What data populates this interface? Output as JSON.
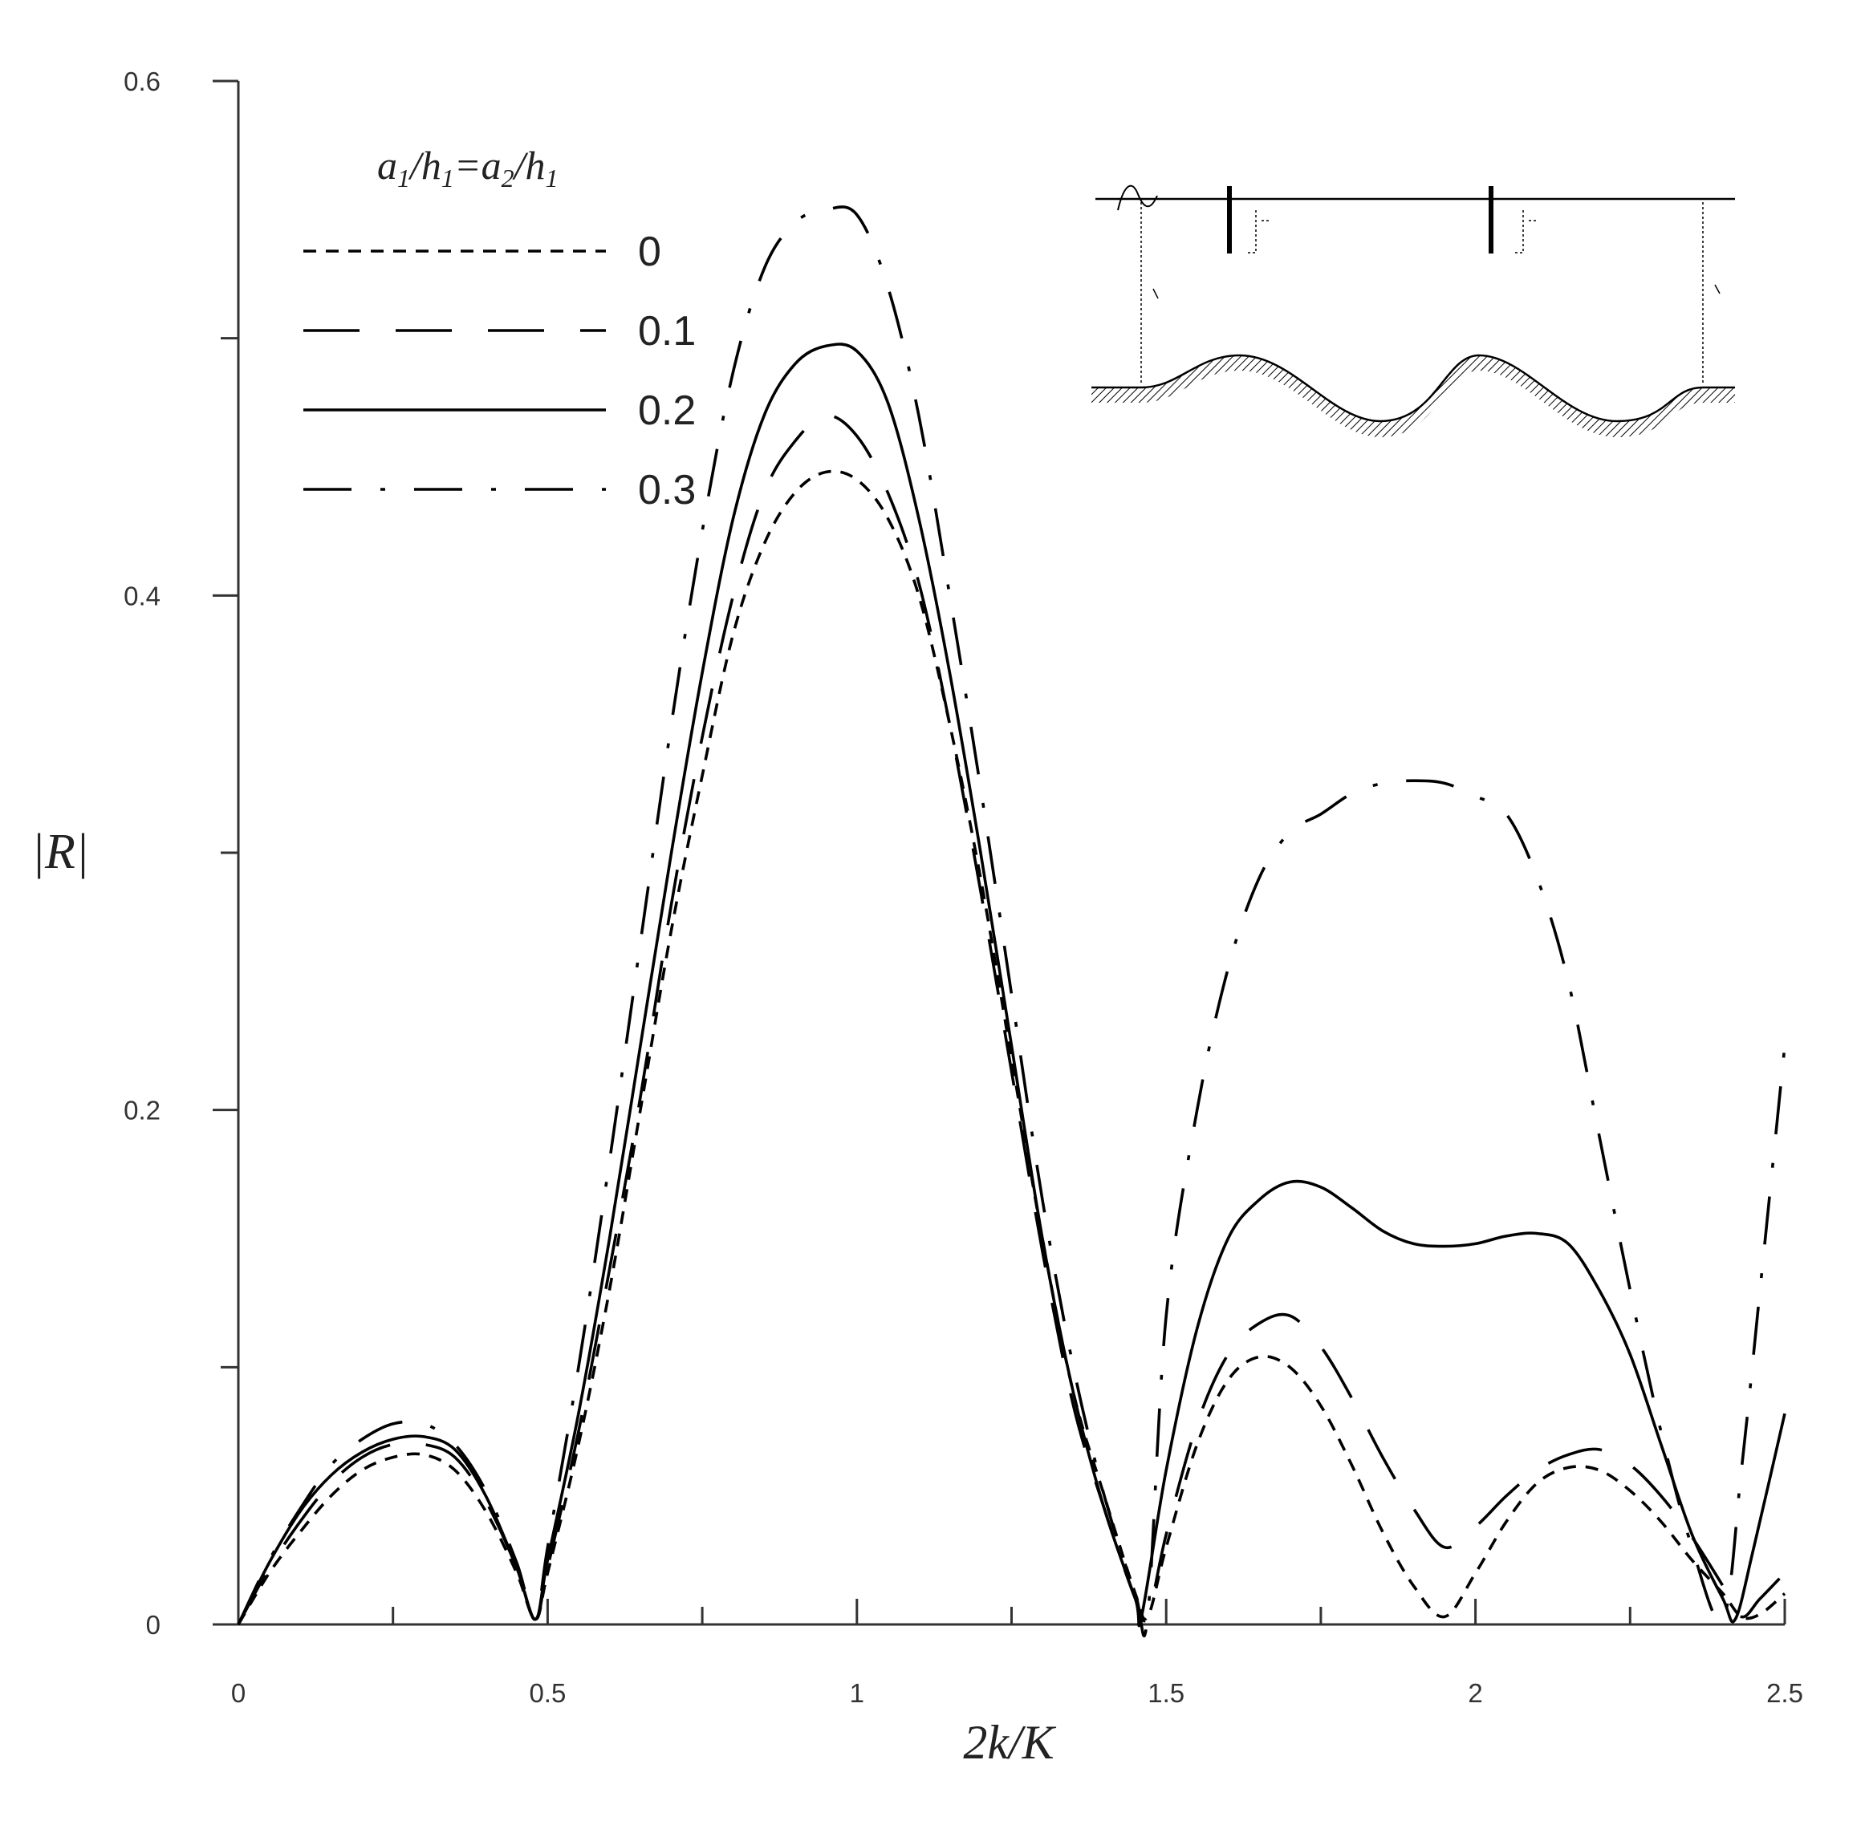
{
  "chart_data": {
    "type": "line",
    "xlabel": "2k/K",
    "ylabel": "|R|",
    "xlim": [
      0,
      2.5
    ],
    "ylim": [
      0,
      0.6
    ],
    "x_ticks": [
      "0",
      "0.5",
      "1",
      "1.5",
      "2",
      "2.5"
    ],
    "y_ticks": [
      "0",
      "0.2",
      "0.4",
      "0.6"
    ],
    "x_tick_values": [
      0,
      0.5,
      1,
      1.5,
      2,
      2.5
    ],
    "y_tick_values": [
      0,
      0.2,
      0.4,
      0.6
    ],
    "legend_title": {
      "a": "a",
      "s1": "1",
      "h": "/h",
      "s2": "1",
      "eq": "=a",
      "s3": "2",
      "h2": "/h",
      "s4": "1"
    },
    "legend_position": "top-left",
    "grid": false,
    "series": [
      {
        "name": "0",
        "style": "short-dash",
        "x": [
          0,
          0.05,
          0.1,
          0.15,
          0.2,
          0.25,
          0.3,
          0.35,
          0.4,
          0.45,
          0.48,
          0.5,
          0.55,
          0.6,
          0.65,
          0.7,
          0.75,
          0.8,
          0.85,
          0.9,
          0.95,
          1.0,
          1.05,
          1.1,
          1.15,
          1.2,
          1.25,
          1.3,
          1.35,
          1.4,
          1.45,
          1.47,
          1.5,
          1.55,
          1.6,
          1.65,
          1.7,
          1.75,
          1.8,
          1.85,
          1.9,
          1.95,
          2.0,
          2.05,
          2.1,
          2.15,
          2.2,
          2.25,
          2.3,
          2.35,
          2.4,
          2.43,
          2.46,
          2.5
        ],
        "y": [
          0,
          0.02,
          0.036,
          0.05,
          0.06,
          0.065,
          0.066,
          0.06,
          0.044,
          0.02,
          0.002,
          0.02,
          0.07,
          0.13,
          0.2,
          0.27,
          0.33,
          0.385,
          0.42,
          0.44,
          0.448,
          0.445,
          0.43,
          0.4,
          0.35,
          0.29,
          0.22,
          0.15,
          0.09,
          0.05,
          0.012,
          0.003,
          0.03,
          0.07,
          0.095,
          0.104,
          0.1,
          0.085,
          0.062,
          0.036,
          0.015,
          0.003,
          0.02,
          0.04,
          0.055,
          0.061,
          0.06,
          0.052,
          0.04,
          0.025,
          0.012,
          0.003,
          0.004,
          0.012
        ]
      },
      {
        "name": "0.1",
        "style": "long-dash",
        "x": [
          0,
          0.05,
          0.1,
          0.15,
          0.2,
          0.25,
          0.3,
          0.35,
          0.4,
          0.45,
          0.48,
          0.5,
          0.55,
          0.6,
          0.65,
          0.7,
          0.75,
          0.8,
          0.85,
          0.9,
          0.95,
          1.0,
          1.05,
          1.1,
          1.15,
          1.2,
          1.25,
          1.3,
          1.35,
          1.4,
          1.45,
          1.47,
          1.5,
          1.55,
          1.6,
          1.65,
          1.7,
          1.75,
          1.8,
          1.85,
          1.9,
          1.95,
          2.0,
          2.05,
          2.1,
          2.15,
          2.2,
          2.25,
          2.3,
          2.35,
          2.4,
          2.43,
          2.46,
          2.5
        ],
        "y": [
          0,
          0.022,
          0.04,
          0.055,
          0.065,
          0.07,
          0.07,
          0.065,
          0.048,
          0.022,
          0.002,
          0.022,
          0.075,
          0.138,
          0.205,
          0.28,
          0.345,
          0.4,
          0.44,
          0.46,
          0.47,
          0.462,
          0.44,
          0.405,
          0.35,
          0.285,
          0.215,
          0.145,
          0.085,
          0.045,
          0.01,
          0.003,
          0.035,
          0.078,
          0.105,
          0.117,
          0.12,
          0.108,
          0.088,
          0.065,
          0.045,
          0.03,
          0.038,
          0.05,
          0.06,
          0.066,
          0.068,
          0.062,
          0.05,
          0.034,
          0.015,
          0.003,
          0.01,
          0.02
        ]
      },
      {
        "name": "0.2",
        "style": "solid",
        "x": [
          0,
          0.05,
          0.1,
          0.15,
          0.2,
          0.25,
          0.3,
          0.35,
          0.4,
          0.45,
          0.48,
          0.5,
          0.55,
          0.6,
          0.65,
          0.7,
          0.75,
          0.8,
          0.85,
          0.9,
          0.95,
          1.0,
          1.05,
          1.1,
          1.15,
          1.2,
          1.25,
          1.3,
          1.35,
          1.4,
          1.45,
          1.46,
          1.5,
          1.55,
          1.6,
          1.65,
          1.7,
          1.75,
          1.8,
          1.85,
          1.9,
          1.95,
          2.0,
          2.05,
          2.1,
          2.15,
          2.2,
          2.25,
          2.3,
          2.35,
          2.4,
          2.42,
          2.45,
          2.5
        ],
        "y": [
          0,
          0.024,
          0.044,
          0.058,
          0.067,
          0.072,
          0.073,
          0.068,
          0.05,
          0.022,
          0.002,
          0.025,
          0.082,
          0.15,
          0.225,
          0.3,
          0.37,
          0.43,
          0.47,
          0.49,
          0.497,
          0.495,
          0.475,
          0.43,
          0.37,
          0.3,
          0.225,
          0.15,
          0.09,
          0.045,
          0.01,
          0.003,
          0.06,
          0.115,
          0.15,
          0.165,
          0.172,
          0.17,
          0.162,
          0.153,
          0.148,
          0.147,
          0.148,
          0.151,
          0.152,
          0.148,
          0.13,
          0.105,
          0.07,
          0.035,
          0.01,
          0.002,
          0.03,
          0.082
        ]
      },
      {
        "name": "0.3",
        "style": "dash-dot",
        "x": [
          0,
          0.05,
          0.1,
          0.15,
          0.2,
          0.25,
          0.3,
          0.35,
          0.4,
          0.45,
          0.48,
          0.5,
          0.55,
          0.6,
          0.65,
          0.7,
          0.75,
          0.8,
          0.85,
          0.9,
          0.95,
          1.0,
          1.05,
          1.1,
          1.15,
          1.2,
          1.25,
          1.3,
          1.35,
          1.4,
          1.45,
          1.47,
          1.5,
          1.55,
          1.6,
          1.65,
          1.7,
          1.75,
          1.8,
          1.85,
          1.9,
          1.95,
          2.0,
          2.05,
          2.1,
          2.15,
          2.2,
          2.25,
          2.3,
          2.35,
          2.4,
          2.43,
          2.46,
          2.5
        ],
        "y": [
          0,
          0.025,
          0.045,
          0.062,
          0.072,
          0.078,
          0.078,
          0.07,
          0.052,
          0.024,
          0.002,
          0.03,
          0.1,
          0.18,
          0.265,
          0.35,
          0.425,
          0.487,
          0.527,
          0.545,
          0.55,
          0.548,
          0.52,
          0.47,
          0.4,
          0.325,
          0.245,
          0.165,
          0.1,
          0.05,
          0.012,
          0.003,
          0.12,
          0.2,
          0.255,
          0.29,
          0.308,
          0.315,
          0.323,
          0.327,
          0.328,
          0.327,
          0.322,
          0.315,
          0.29,
          0.25,
          0.19,
          0.13,
          0.075,
          0.03,
          0.002,
          0.06,
          0.13,
          0.225
        ]
      }
    ]
  }
}
